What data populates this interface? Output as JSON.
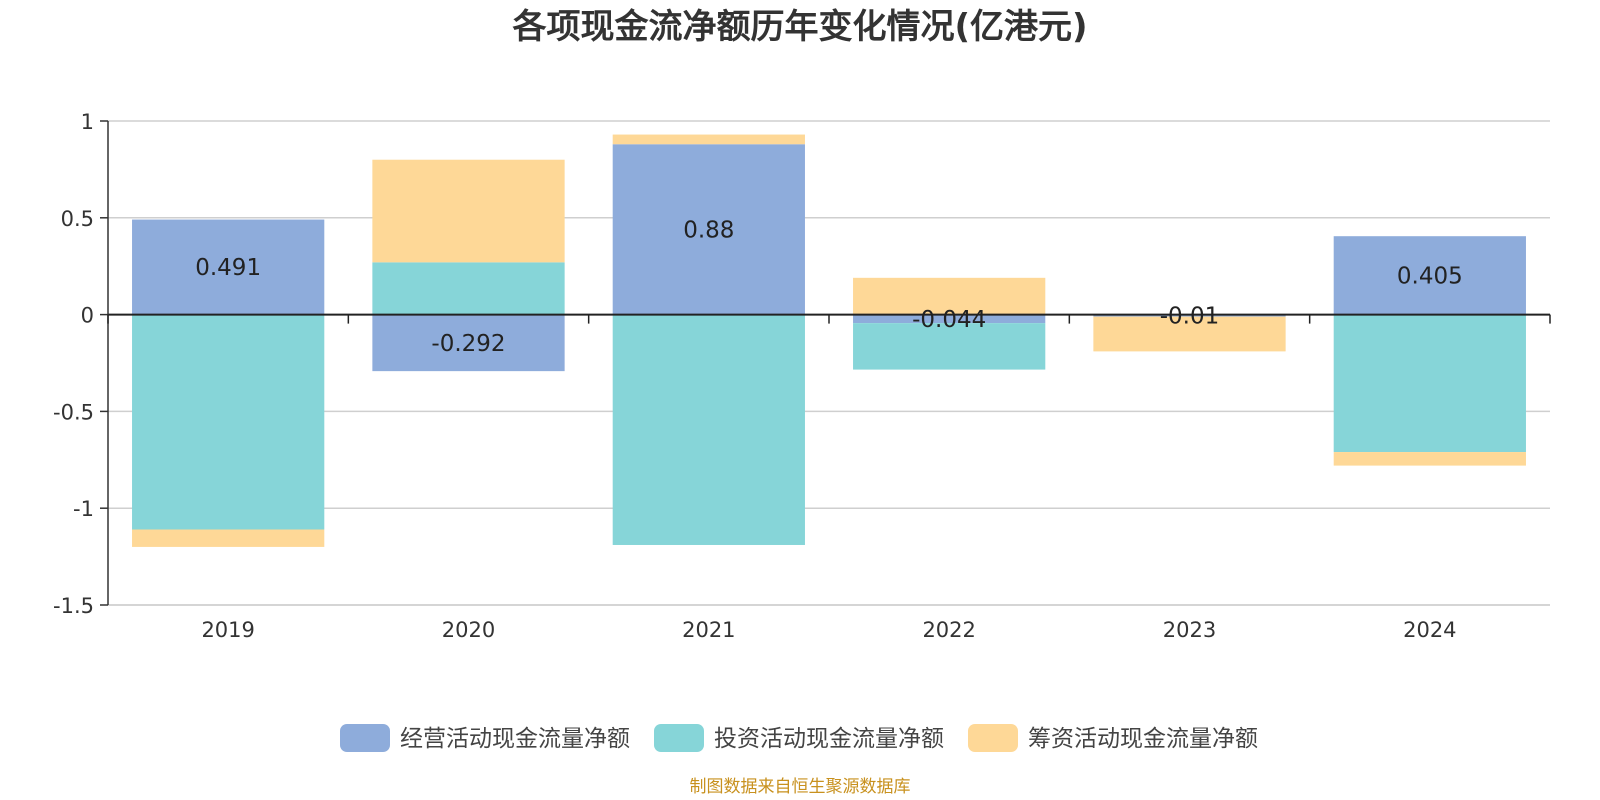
{
  "chart_data": {
    "type": "bar",
    "stacked": true,
    "title": "各项现金流净额历年变化情况(亿港元)",
    "xlabel": "",
    "ylabel": "",
    "categories": [
      "2019",
      "2020",
      "2021",
      "2022",
      "2023",
      "2024"
    ],
    "ylim": [
      -1.5,
      1
    ],
    "yticks": [
      1,
      0.5,
      0,
      -0.5,
      -1,
      -1.5
    ],
    "ytick_labels": [
      "1",
      "0.5",
      "0",
      "-0.5",
      "-1",
      "-1.5"
    ],
    "grid": true,
    "legend_position": "bottom-center",
    "series": [
      {
        "name": "经营活动现金流量净额",
        "color": "#8eacdb",
        "values": [
          0.491,
          -0.292,
          0.88,
          -0.044,
          -0.01,
          0.405
        ],
        "labels": [
          "0.491",
          "-0.292",
          "0.88",
          "-0.044",
          "-0.01",
          "0.405"
        ]
      },
      {
        "name": "投资活动现金流量净额",
        "color": "#86d5d8",
        "values": [
          -1.11,
          0.27,
          -1.19,
          -0.24,
          0.0,
          -0.71
        ]
      },
      {
        "name": "筹资活动现金流量净额",
        "color": "#fed897",
        "values": [
          -0.09,
          0.53,
          0.05,
          0.19,
          -0.18,
          -0.07
        ]
      }
    ]
  },
  "source_text": "制图数据来自恒生聚源数据库"
}
